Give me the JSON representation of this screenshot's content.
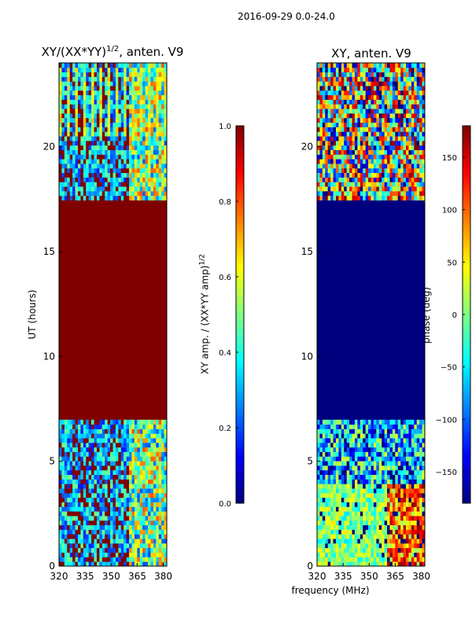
{
  "page": {
    "suptitle": "2016-09-29 0.0-24.0"
  },
  "colormap": [
    "#00007f",
    "#0000ff",
    "#007fff",
    "#00ffff",
    "#7fff7f",
    "#ffff00",
    "#ff7f00",
    "#ff0000",
    "#7f0000"
  ],
  "chart_data": [
    {
      "type": "heatmap",
      "title_main": "XY/(XX*YY)",
      "title_sup": "1/2",
      "title_rest": ", anten. V9",
      "xlabel": "",
      "ylabel": "UT (hours)",
      "xlim": [
        320,
        382
      ],
      "ylim": [
        0,
        24
      ],
      "xticks": [
        320,
        335,
        350,
        365,
        380
      ],
      "yticks": [
        0,
        5,
        10,
        15,
        20
      ],
      "colorbar": {
        "label_main": "XY amp. / (XX*YY amp)",
        "label_sup": "1/2",
        "range": [
          0.0,
          1.0
        ],
        "ticks": [
          "0.0",
          "0.2",
          "0.4",
          "0.6",
          "0.8",
          "1.0"
        ]
      }
    },
    {
      "type": "heatmap",
      "title": "XY, anten. V9",
      "xlabel": "frequency (MHz)",
      "ylabel": "",
      "xlim": [
        320,
        382
      ],
      "ylim": [
        0,
        24
      ],
      "xticks": [
        320,
        335,
        350,
        365,
        380
      ],
      "yticks": [
        0,
        5,
        10,
        15,
        20
      ],
      "colorbar": {
        "label": "phase (deg)",
        "range": [
          -180,
          180
        ],
        "ticks": [
          "−150",
          "−100",
          "−50",
          "0",
          "50",
          "100",
          "150"
        ]
      }
    }
  ]
}
